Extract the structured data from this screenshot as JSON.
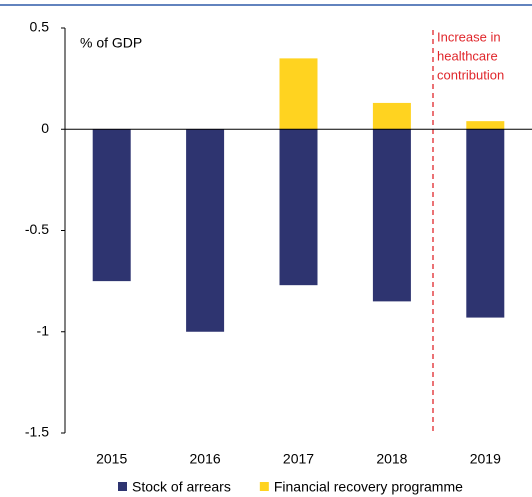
{
  "chart_data": {
    "type": "bar",
    "stacked": true,
    "y_label": "% of GDP",
    "categories": [
      "2015",
      "2016",
      "2017",
      "2018",
      "2019"
    ],
    "series": [
      {
        "name": "Stock of arrears",
        "color": "#2e3470",
        "values": [
          -0.75,
          -1.0,
          -0.77,
          -0.85,
          -0.93
        ]
      },
      {
        "name": "Financial recovery programme",
        "color": "#ffd320",
        "values": [
          0,
          0,
          0.35,
          0.13,
          0.04
        ]
      }
    ],
    "ylim": [
      -1.5,
      0.5
    ],
    "yticks": [
      0.5,
      0,
      -0.5,
      -1,
      -1.5
    ],
    "annotation": [
      "Increase in",
      "healthcare",
      "contribution"
    ],
    "annotation_color": "#e0262b",
    "legend": "bottom"
  }
}
